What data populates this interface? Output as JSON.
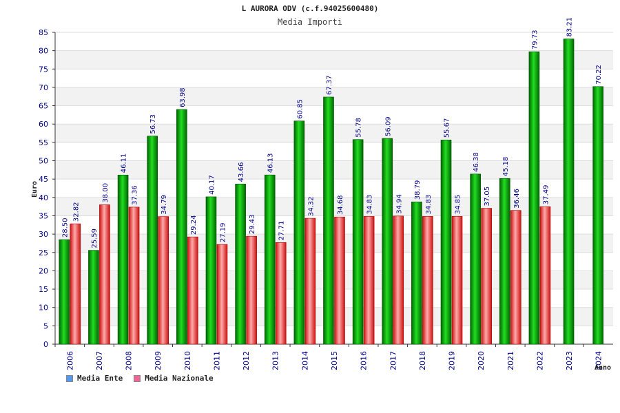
{
  "chart_data": {
    "type": "bar",
    "title": "L AURORA ODV (c.f.94025600480)",
    "subtitle": "Media Importi",
    "xlabel": "Anno",
    "ylabel": "Euro",
    "ylim": [
      0,
      85
    ],
    "ytick_step": 5,
    "categories": [
      "2006",
      "2007",
      "2008",
      "2009",
      "2010",
      "2011",
      "2012",
      "2013",
      "2014",
      "2015",
      "2016",
      "2017",
      "2018",
      "2019",
      "2020",
      "2021",
      "2022",
      "2023",
      "2024"
    ],
    "series": [
      {
        "name": "Media Ente",
        "color": "#00aa00",
        "values": [
          28.5,
          25.59,
          46.11,
          56.73,
          63.98,
          40.17,
          43.66,
          46.13,
          60.85,
          67.37,
          55.78,
          56.09,
          38.79,
          55.67,
          46.38,
          45.18,
          79.73,
          83.21,
          70.22
        ],
        "labels": [
          "28.50",
          "25.59",
          "46.11",
          "56.73",
          "63.98",
          "40.17",
          "43.66",
          "46.13",
          "60.85",
          "67.37",
          "55.78",
          "56.09",
          "38.79",
          "55.67",
          "46.38",
          "45.18",
          "79.73",
          "83.21",
          "70.22"
        ]
      },
      {
        "name": "Media Nazionale",
        "color": "#dd2222",
        "values": [
          32.82,
          38.0,
          37.36,
          34.79,
          29.24,
          27.19,
          29.43,
          27.71,
          34.32,
          34.68,
          34.83,
          34.94,
          34.83,
          34.85,
          37.05,
          36.46,
          37.49,
          null,
          null
        ],
        "labels": [
          "32.82",
          "38.00",
          "37.36",
          "34.79",
          "29.24",
          "27.19",
          "29.43",
          "27.71",
          "34.32",
          "34.68",
          "34.83",
          "34.94",
          "34.83",
          "34.85",
          "37.05",
          "36.46",
          "37.49",
          null,
          null
        ]
      }
    ],
    "legend": [
      {
        "label": "Media Ente",
        "swatch": "#5599ee"
      },
      {
        "label": "Media Nazionale",
        "swatch": "#ee6699"
      }
    ]
  }
}
